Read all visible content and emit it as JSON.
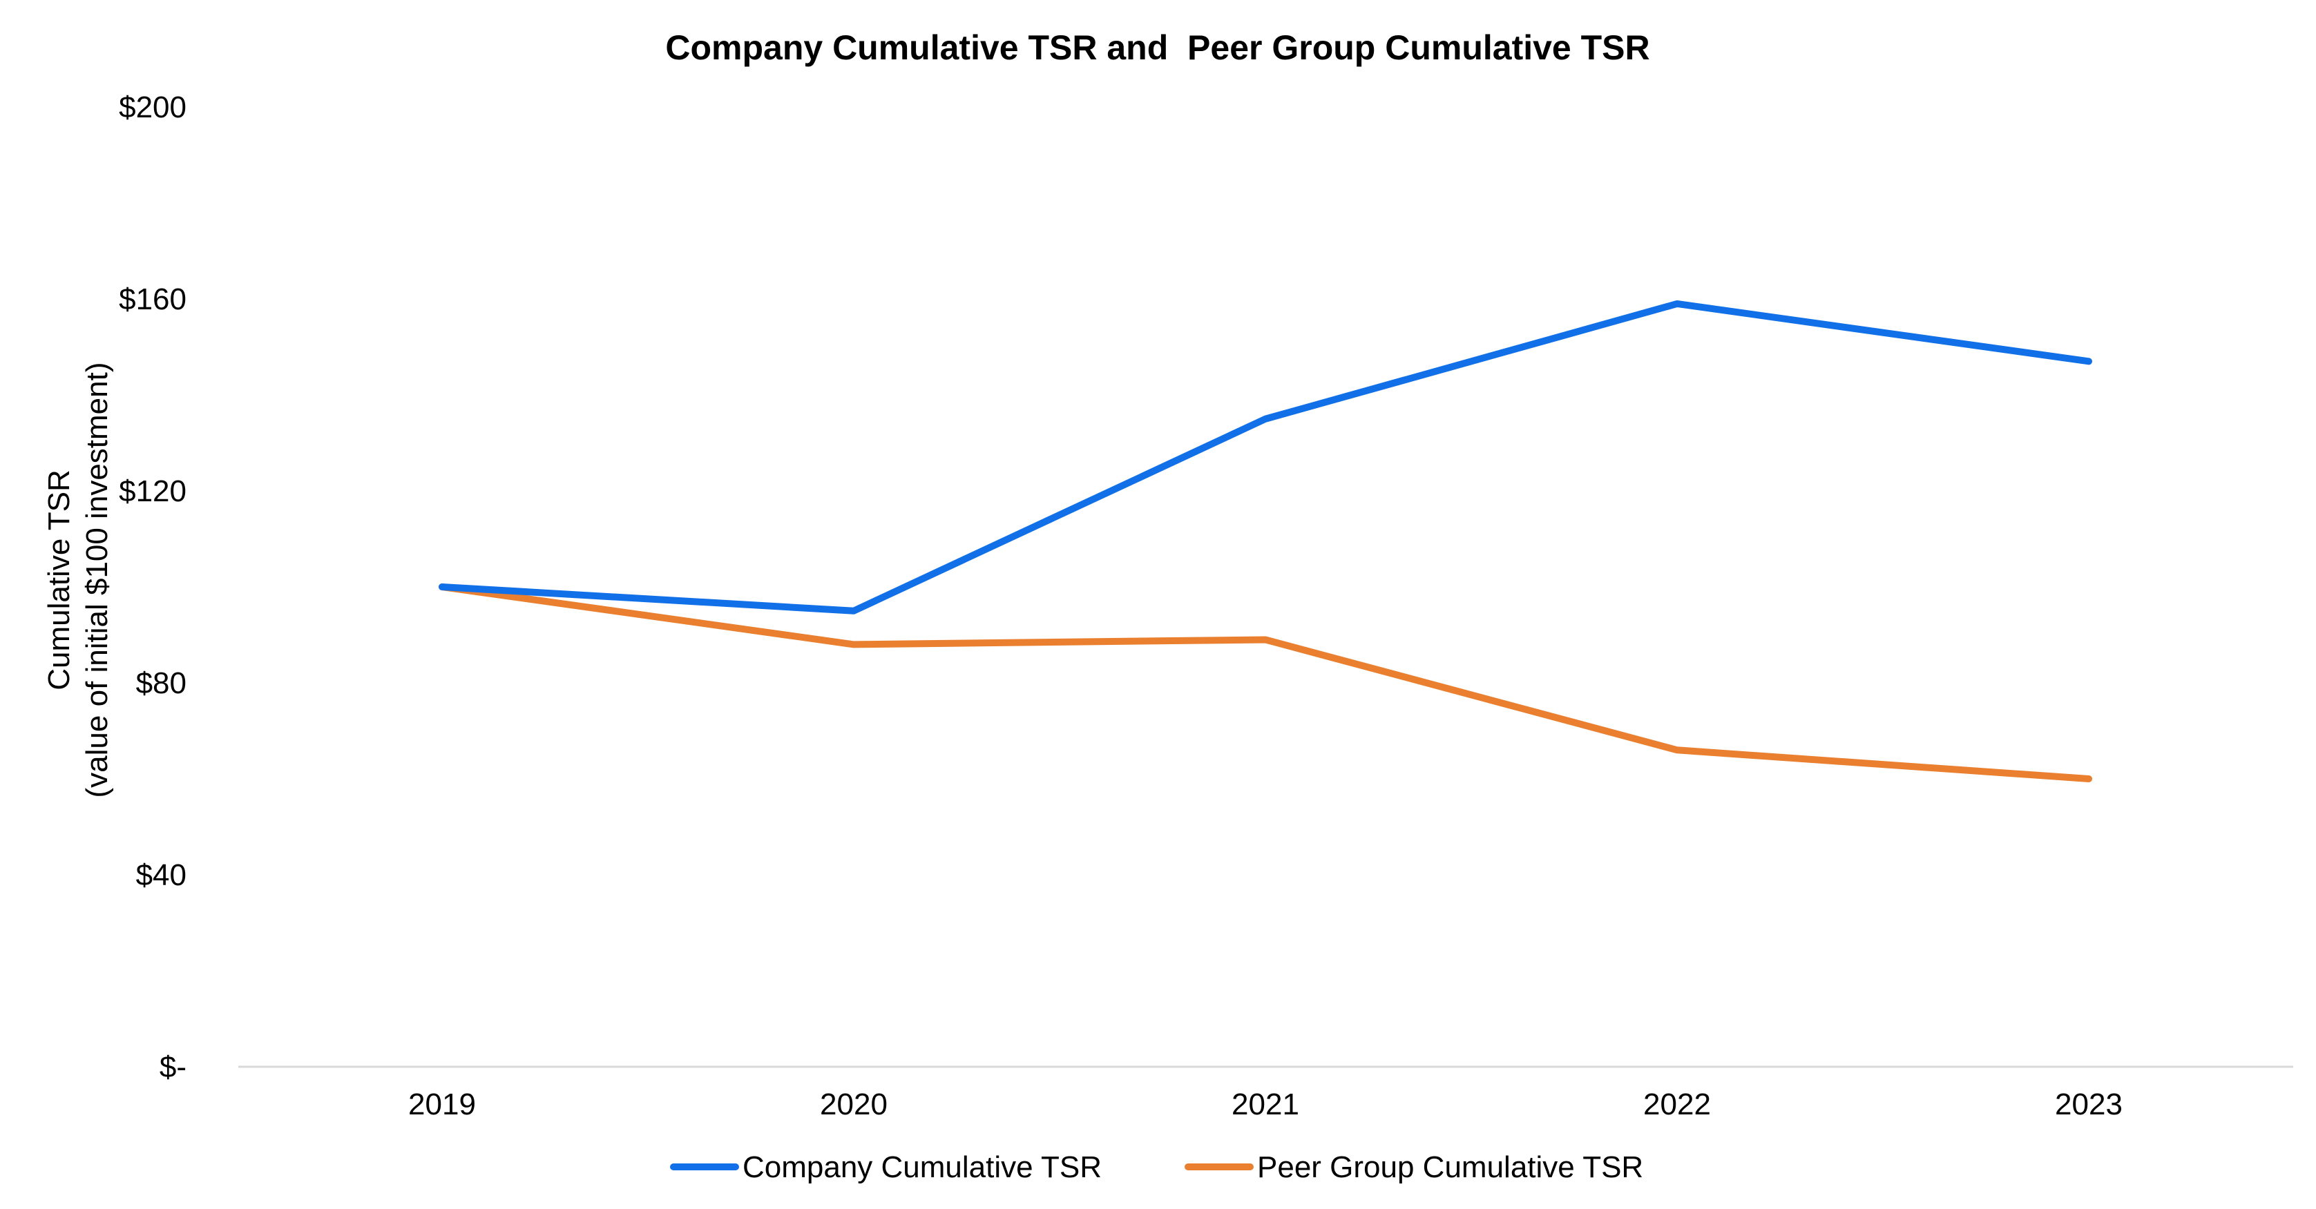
{
  "chart_data": {
    "type": "line",
    "title": "Company Cumulative TSR and  Peer Group Cumulative TSR",
    "xlabel": "",
    "ylabel": [
      "Cumulative TSR",
      "(value of initial $100 investment)"
    ],
    "categories": [
      "2019",
      "2020",
      "2021",
      "2022",
      "2023"
    ],
    "ylim": [
      0,
      200
    ],
    "yticks": [
      0,
      40,
      80,
      120,
      160,
      200
    ],
    "ytick_labels": [
      "$-",
      "$40",
      "$80",
      "$120",
      "$160",
      "$200"
    ],
    "grid": false,
    "legend_position": "bottom",
    "series": [
      {
        "name": "Company Cumulative TSR",
        "color": "#1170E8",
        "values": [
          100,
          95,
          135,
          159,
          147
        ]
      },
      {
        "name": "Peer Group Cumulative TSR",
        "color": "#E97F2F",
        "values": [
          100,
          88,
          89,
          66,
          60
        ]
      }
    ]
  }
}
